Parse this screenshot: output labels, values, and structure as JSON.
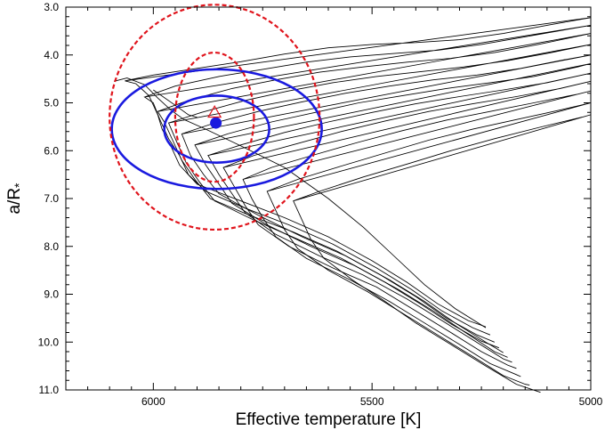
{
  "chart_data": {
    "type": "line",
    "xlabel": "Effective temperature [K]",
    "ylabel": "a/R",
    "ylabel_sub": "*",
    "xlim": [
      6200,
      5000
    ],
    "ylim": [
      11.0,
      3.0
    ],
    "x_reversed": true,
    "y_reversed": true,
    "x_major_ticks": [
      6000,
      5500,
      5000
    ],
    "x_tick_labels": [
      "6000",
      "5500",
      "5000"
    ],
    "y_major_ticks": [
      3.0,
      4.0,
      5.0,
      6.0,
      7.0,
      8.0,
      9.0,
      10.0,
      11.0
    ],
    "y_tick_labels": [
      "3.0",
      "4.0",
      "5.0",
      "6.0",
      "7.0",
      "8.0",
      "9.0",
      "10.0",
      "11.0"
    ],
    "colors": {
      "tracks": "#000000",
      "ellipse_solid": "#1a1adf",
      "ellipse_dashed": "#e0141c",
      "point": "#1a1adf",
      "triangle": "#e0141c"
    },
    "ellipses": [
      {
        "style": "solid",
        "cx": 5855,
        "cy": 5.55,
        "rx": 120,
        "ry": 0.7
      },
      {
        "style": "solid",
        "cx": 5855,
        "cy": 5.55,
        "rx": 240,
        "ry": 1.25
      },
      {
        "style": "dashed",
        "cx": 5860,
        "cy": 5.3,
        "rx": 90,
        "ry": 1.35
      },
      {
        "style": "dashed",
        "cx": 5860,
        "cy": 5.3,
        "rx": 240,
        "ry": 2.35
      }
    ],
    "points": [
      {
        "marker": "filled-circle",
        "x": 5857,
        "y": 5.42
      },
      {
        "marker": "open-triangle",
        "x": 5860,
        "y": 5.2
      }
    ],
    "series": [
      {
        "points": [
          [
            6065,
            4.54
          ],
          [
            6000,
            4.42
          ],
          [
            5900,
            4.28
          ],
          [
            5800,
            4.14
          ],
          [
            5700,
            3.98
          ],
          [
            5600,
            3.85
          ],
          [
            5500,
            3.78
          ],
          [
            5400,
            3.74
          ],
          [
            5300,
            3.68
          ],
          [
            5200,
            3.55
          ],
          [
            5100,
            3.38
          ],
          [
            5000,
            3.22
          ],
          [
            6065,
            4.54
          ],
          [
            6040,
            4.6
          ],
          [
            6010,
            4.85
          ],
          [
            5990,
            5.25
          ],
          [
            5980,
            5.55
          ],
          [
            5960,
            5.9
          ],
          [
            5940,
            6.3
          ],
          [
            5900,
            6.7
          ],
          [
            5800,
            7.05
          ],
          [
            5700,
            7.4
          ],
          [
            5600,
            7.8
          ],
          [
            5500,
            8.3
          ],
          [
            5420,
            8.75
          ],
          [
            5350,
            9.2
          ],
          [
            5280,
            9.55
          ],
          [
            5240,
            9.68
          ]
        ]
      },
      {
        "points": [
          [
            6020,
            4.88
          ],
          [
            5950,
            4.65
          ],
          [
            5850,
            4.45
          ],
          [
            5750,
            4.3
          ],
          [
            5650,
            4.15
          ],
          [
            5550,
            4.04
          ],
          [
            5450,
            3.97
          ],
          [
            5350,
            3.9
          ],
          [
            5250,
            3.78
          ],
          [
            5150,
            3.62
          ],
          [
            5000,
            3.38
          ],
          [
            6020,
            4.88
          ],
          [
            6000,
            5.0
          ],
          [
            5985,
            5.35
          ],
          [
            5965,
            5.75
          ],
          [
            5940,
            6.1
          ],
          [
            5920,
            6.5
          ],
          [
            5880,
            6.85
          ],
          [
            5790,
            7.2
          ],
          [
            5690,
            7.55
          ],
          [
            5590,
            7.95
          ],
          [
            5490,
            8.45
          ],
          [
            5410,
            8.9
          ],
          [
            5340,
            9.35
          ],
          [
            5270,
            9.7
          ],
          [
            5230,
            9.85
          ]
        ]
      },
      {
        "points": [
          [
            5990,
            5.18
          ],
          [
            5920,
            4.95
          ],
          [
            5820,
            4.7
          ],
          [
            5720,
            4.52
          ],
          [
            5620,
            4.36
          ],
          [
            5520,
            4.25
          ],
          [
            5420,
            4.15
          ],
          [
            5320,
            4.07
          ],
          [
            5220,
            3.95
          ],
          [
            5120,
            3.78
          ],
          [
            5000,
            3.55
          ],
          [
            5990,
            5.18
          ],
          [
            5975,
            5.4
          ],
          [
            5955,
            5.8
          ],
          [
            5935,
            6.2
          ],
          [
            5905,
            6.6
          ],
          [
            5870,
            7.0
          ],
          [
            5780,
            7.35
          ],
          [
            5680,
            7.7
          ],
          [
            5580,
            8.1
          ],
          [
            5480,
            8.6
          ],
          [
            5400,
            9.05
          ],
          [
            5330,
            9.5
          ],
          [
            5260,
            9.85
          ],
          [
            5220,
            10.0
          ]
        ]
      },
      {
        "points": [
          [
            5965,
            5.42
          ],
          [
            5890,
            5.2
          ],
          [
            5790,
            4.95
          ],
          [
            5690,
            4.75
          ],
          [
            5590,
            4.58
          ],
          [
            5490,
            4.45
          ],
          [
            5390,
            4.35
          ],
          [
            5290,
            4.25
          ],
          [
            5190,
            4.12
          ],
          [
            5090,
            3.95
          ],
          [
            5000,
            3.78
          ],
          [
            5965,
            5.42
          ],
          [
            5945,
            5.85
          ],
          [
            5925,
            6.25
          ],
          [
            5895,
            6.65
          ],
          [
            5860,
            7.05
          ],
          [
            5770,
            7.45
          ],
          [
            5670,
            7.85
          ],
          [
            5570,
            8.25
          ],
          [
            5470,
            8.75
          ],
          [
            5390,
            9.2
          ],
          [
            5320,
            9.62
          ],
          [
            5250,
            9.98
          ],
          [
            5210,
            10.12
          ]
        ]
      },
      {
        "points": [
          [
            5935,
            5.65
          ],
          [
            5860,
            5.42
          ],
          [
            5760,
            5.18
          ],
          [
            5660,
            4.98
          ],
          [
            5560,
            4.8
          ],
          [
            5460,
            4.65
          ],
          [
            5360,
            4.52
          ],
          [
            5260,
            4.42
          ],
          [
            5160,
            4.28
          ],
          [
            5060,
            4.1
          ],
          [
            5000,
            4.0
          ],
          [
            5935,
            5.65
          ],
          [
            5915,
            6.1
          ],
          [
            5885,
            6.5
          ],
          [
            5850,
            6.9
          ],
          [
            5760,
            7.35
          ],
          [
            5660,
            7.8
          ],
          [
            5560,
            8.2
          ],
          [
            5460,
            8.7
          ],
          [
            5380,
            9.15
          ],
          [
            5310,
            9.6
          ],
          [
            5240,
            10.0
          ],
          [
            5200,
            10.22
          ]
        ]
      },
      {
        "points": [
          [
            5905,
            5.88
          ],
          [
            5830,
            5.65
          ],
          [
            5730,
            5.4
          ],
          [
            5630,
            5.2
          ],
          [
            5530,
            5.0
          ],
          [
            5430,
            4.85
          ],
          [
            5330,
            4.7
          ],
          [
            5230,
            4.58
          ],
          [
            5130,
            4.45
          ],
          [
            5030,
            4.25
          ],
          [
            5000,
            4.18
          ],
          [
            5905,
            5.88
          ],
          [
            5880,
            6.3
          ],
          [
            5850,
            6.7
          ],
          [
            5820,
            7.1
          ],
          [
            5740,
            7.55
          ],
          [
            5640,
            8.0
          ],
          [
            5540,
            8.4
          ],
          [
            5440,
            8.9
          ],
          [
            5360,
            9.35
          ],
          [
            5290,
            9.78
          ],
          [
            5220,
            10.2
          ],
          [
            5190,
            10.32
          ]
        ]
      },
      {
        "points": [
          [
            5875,
            6.1
          ],
          [
            5800,
            5.88
          ],
          [
            5700,
            5.62
          ],
          [
            5600,
            5.4
          ],
          [
            5500,
            5.2
          ],
          [
            5400,
            5.02
          ],
          [
            5300,
            4.87
          ],
          [
            5200,
            4.73
          ],
          [
            5100,
            4.58
          ],
          [
            5000,
            4.38
          ],
          [
            5875,
            6.1
          ],
          [
            5850,
            6.5
          ],
          [
            5820,
            6.9
          ],
          [
            5790,
            7.3
          ],
          [
            5720,
            7.75
          ],
          [
            5620,
            8.2
          ],
          [
            5520,
            8.6
          ],
          [
            5420,
            9.1
          ],
          [
            5340,
            9.55
          ],
          [
            5270,
            9.95
          ],
          [
            5200,
            10.35
          ],
          [
            5180,
            10.42
          ]
        ]
      },
      {
        "points": [
          [
            5840,
            6.35
          ],
          [
            5770,
            6.1
          ],
          [
            5670,
            5.85
          ],
          [
            5570,
            5.6
          ],
          [
            5470,
            5.38
          ],
          [
            5370,
            5.18
          ],
          [
            5270,
            5.02
          ],
          [
            5170,
            4.87
          ],
          [
            5070,
            4.7
          ],
          [
            5000,
            4.55
          ],
          [
            5840,
            6.35
          ],
          [
            5815,
            6.75
          ],
          [
            5790,
            7.15
          ],
          [
            5760,
            7.55
          ],
          [
            5690,
            8.0
          ],
          [
            5590,
            8.45
          ],
          [
            5490,
            8.85
          ],
          [
            5400,
            9.35
          ],
          [
            5320,
            9.8
          ],
          [
            5250,
            10.2
          ],
          [
            5190,
            10.48
          ],
          [
            5170,
            10.55
          ]
        ]
      },
      {
        "points": [
          [
            5795,
            6.6
          ],
          [
            5730,
            6.35
          ],
          [
            5630,
            6.08
          ],
          [
            5530,
            5.82
          ],
          [
            5430,
            5.58
          ],
          [
            5330,
            5.36
          ],
          [
            5230,
            5.18
          ],
          [
            5130,
            5.0
          ],
          [
            5030,
            4.82
          ],
          [
            5000,
            4.75
          ],
          [
            5795,
            6.6
          ],
          [
            5775,
            7.0
          ],
          [
            5750,
            7.4
          ],
          [
            5720,
            7.8
          ],
          [
            5650,
            8.25
          ],
          [
            5550,
            8.7
          ],
          [
            5460,
            9.15
          ],
          [
            5380,
            9.6
          ],
          [
            5300,
            10.05
          ],
          [
            5230,
            10.45
          ],
          [
            5170,
            10.68
          ],
          [
            5160,
            10.72
          ]
        ]
      },
      {
        "points": [
          [
            5740,
            6.85
          ],
          [
            5670,
            6.6
          ],
          [
            5570,
            6.32
          ],
          [
            5470,
            6.05
          ],
          [
            5370,
            5.78
          ],
          [
            5270,
            5.55
          ],
          [
            5170,
            5.35
          ],
          [
            5070,
            5.15
          ],
          [
            5000,
            5.0
          ],
          [
            5740,
            6.85
          ],
          [
            5720,
            7.25
          ],
          [
            5700,
            7.65
          ],
          [
            5670,
            8.05
          ],
          [
            5600,
            8.5
          ],
          [
            5510,
            8.95
          ],
          [
            5430,
            9.4
          ],
          [
            5350,
            9.85
          ],
          [
            5270,
            10.3
          ],
          [
            5200,
            10.7
          ],
          [
            5150,
            10.88
          ],
          [
            5140,
            10.9
          ]
        ]
      },
      {
        "points": [
          [
            5680,
            7.05
          ],
          [
            5620,
            6.85
          ],
          [
            5520,
            6.55
          ],
          [
            5420,
            6.28
          ],
          [
            5320,
            6.0
          ],
          [
            5220,
            5.75
          ],
          [
            5120,
            5.52
          ],
          [
            5020,
            5.3
          ],
          [
            5000,
            5.25
          ],
          [
            5680,
            7.05
          ],
          [
            5660,
            7.45
          ],
          [
            5640,
            7.85
          ],
          [
            5610,
            8.25
          ],
          [
            5545,
            8.7
          ],
          [
            5470,
            9.15
          ],
          [
            5400,
            9.6
          ],
          [
            5320,
            10.05
          ],
          [
            5240,
            10.5
          ],
          [
            5170,
            10.88
          ],
          [
            5115,
            11.05
          ]
        ]
      },
      {
        "points": [
          [
            6090,
            4.55
          ],
          [
            6060,
            4.48
          ],
          [
            6020,
            4.62
          ],
          [
            5990,
            4.9
          ],
          [
            5960,
            5.15
          ],
          [
            5930,
            5.35
          ],
          [
            5880,
            5.55
          ],
          [
            5800,
            5.9
          ],
          [
            5700,
            6.35
          ],
          [
            5600,
            7.0
          ],
          [
            5520,
            7.6
          ],
          [
            5450,
            8.2
          ],
          [
            5380,
            8.8
          ],
          [
            5310,
            9.3
          ],
          [
            5240,
            9.7
          ]
        ]
      },
      {
        "points": [
          [
            6000,
            4.73
          ],
          [
            5950,
            5.05
          ],
          [
            5920,
            5.25
          ],
          [
            5900,
            5.3
          ]
        ]
      }
    ]
  }
}
